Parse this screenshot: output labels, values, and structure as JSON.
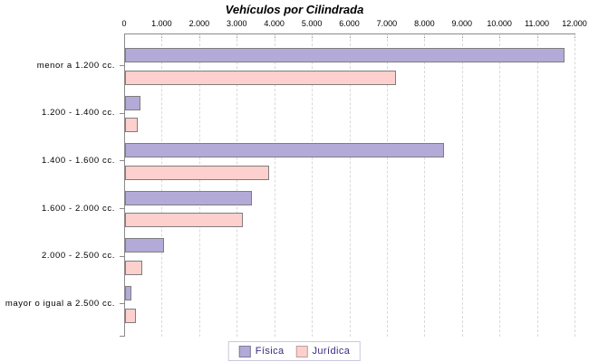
{
  "chart_data": {
    "type": "bar",
    "orientation": "horizontal",
    "title": "Vehículos por Cilindrada",
    "xlabel": "",
    "ylabel": "",
    "categories": [
      "menor a 1.200 cc.",
      "1.200 - 1.400 cc.",
      "1.400 - 1.600 cc.",
      "1.600 - 2.000 cc.",
      "2.000 - 2.500 cc.",
      "mayor o igual a 2.500 cc."
    ],
    "series": [
      {
        "name": "Física",
        "fill": "#b4aad8",
        "values": [
          11650,
          370,
          8440,
          3320,
          990,
          120
        ]
      },
      {
        "name": "Jurídica",
        "fill": "#fdd0cd",
        "values": [
          7170,
          300,
          3790,
          3100,
          400,
          250
        ]
      }
    ],
    "x_axis": {
      "min": 0,
      "max": 12000,
      "tick_interval": 1000,
      "position": "top",
      "tick_labels": [
        "0",
        "1.000",
        "2.000",
        "3.000",
        "4.000",
        "5.000",
        "6.000",
        "7.000",
        "8.000",
        "9.000",
        "10.000",
        "11.000",
        "12.000"
      ]
    },
    "grid": "vertical-dashed",
    "legend_position": "bottom-center",
    "colors": {
      "bar_border": "#7e7e7e",
      "axis": "#8a8a8a",
      "gridline": "#d9d9d9",
      "legend_text": "#3b2c7e",
      "legend_border": "#c9c9dd",
      "title": "#000000",
      "swatch_border_fisica": "#7d7a96",
      "swatch_border_juridica": "#bf9f9e"
    }
  }
}
